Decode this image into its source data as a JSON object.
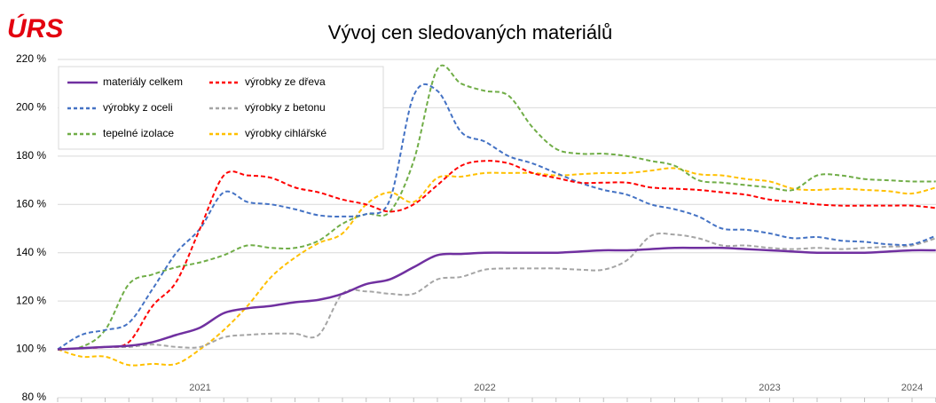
{
  "chart_data": {
    "type": "line",
    "logo": "ÚRS",
    "title": "Vývoj cen sledovaných materiálů",
    "categories": [
      null,
      null,
      null,
      null,
      null,
      null,
      "2021",
      null,
      null,
      null,
      null,
      null,
      null,
      null,
      null,
      null,
      null,
      null,
      "2022",
      null,
      null,
      null,
      null,
      null,
      null,
      null,
      null,
      null,
      null,
      null,
      "2023",
      null,
      null,
      null,
      null,
      null,
      "2024",
      null
    ],
    "ylim": [
      80,
      220
    ],
    "yticks": [
      {
        "value": 80,
        "label": "80 %"
      },
      {
        "value": 100,
        "label": "100 %"
      },
      {
        "value": 120,
        "label": "120 %"
      },
      {
        "value": 140,
        "label": "140 %"
      },
      {
        "value": 160,
        "label": "160 %"
      },
      {
        "value": 180,
        "label": "180 %"
      },
      {
        "value": 200,
        "label": "200 %"
      },
      {
        "value": 220,
        "label": "220 %"
      }
    ],
    "grid": true,
    "legend": "top-left",
    "series": [
      {
        "name": "materiály celkem",
        "color": "#7030a0",
        "dashed": false,
        "values": [
          100,
          100.5,
          101,
          101.5,
          103,
          106,
          109,
          115,
          117,
          118,
          119.5,
          120.5,
          123,
          127,
          129,
          134,
          139,
          139.5,
          140,
          140,
          140,
          140,
          140.5,
          141,
          141,
          141.5,
          142,
          142,
          142,
          141.5,
          141,
          140.5,
          140,
          140,
          140,
          140.5,
          141,
          141
        ]
      },
      {
        "name": "výrobky ze dřeva",
        "color": "#ff0000",
        "dashed": true,
        "values": [
          100,
          100.5,
          101,
          103,
          118,
          128,
          150,
          172,
          172,
          171,
          167,
          165,
          162,
          160,
          157,
          160,
          168,
          176,
          178,
          177,
          173,
          171,
          169,
          169,
          169,
          167,
          166.5,
          166,
          165,
          164,
          162,
          161,
          160,
          159.5,
          159.5,
          159.5,
          159.5,
          158.5
        ]
      },
      {
        "name": "výrobky z oceli",
        "color": "#4472c4",
        "dashed": true,
        "values": [
          100,
          106,
          108,
          111,
          125,
          140,
          150,
          165,
          161,
          160,
          158,
          155.5,
          155,
          156,
          162,
          205,
          207,
          190,
          186,
          180,
          177,
          173,
          169,
          166,
          164,
          160,
          158,
          155,
          150,
          149.5,
          148,
          146,
          146.5,
          145,
          144.5,
          143.5,
          143.5,
          147
        ]
      },
      {
        "name": "výrobky z betonu",
        "color": "#a5a5a5",
        "dashed": true,
        "values": [
          100,
          100.5,
          101,
          101,
          102,
          101,
          101,
          105,
          106,
          106.5,
          106.5,
          106,
          123,
          124,
          123,
          123,
          129,
          130,
          133,
          133.5,
          133.5,
          133.5,
          133,
          133,
          137,
          147,
          147.5,
          146,
          143,
          143,
          142,
          141.5,
          142,
          141.5,
          142,
          142.5,
          143,
          146
        ]
      },
      {
        "name": "tepelné izolace",
        "color": "#70ad47",
        "dashed": true,
        "values": [
          100,
          101,
          108,
          127,
          131,
          134,
          136,
          139,
          143,
          142,
          142,
          145,
          152,
          156,
          157,
          178,
          216,
          210,
          207,
          205,
          192,
          183,
          181,
          181,
          180,
          178,
          176,
          170,
          169,
          168,
          167,
          166,
          172,
          172,
          170.5,
          170,
          169.5,
          169.5
        ]
      },
      {
        "name": "výrobky cihlářské",
        "color": "#ffc000",
        "dashed": true,
        "values": [
          100,
          97,
          97,
          93.5,
          94,
          94,
          100,
          108,
          118,
          130,
          138,
          144,
          148,
          160,
          165,
          161,
          171,
          171.5,
          173,
          173,
          173,
          172,
          172.5,
          173,
          173,
          174,
          175,
          172.5,
          172,
          170.5,
          169.5,
          166.5,
          166,
          166.5,
          166,
          165.5,
          164.5,
          167
        ]
      }
    ]
  }
}
